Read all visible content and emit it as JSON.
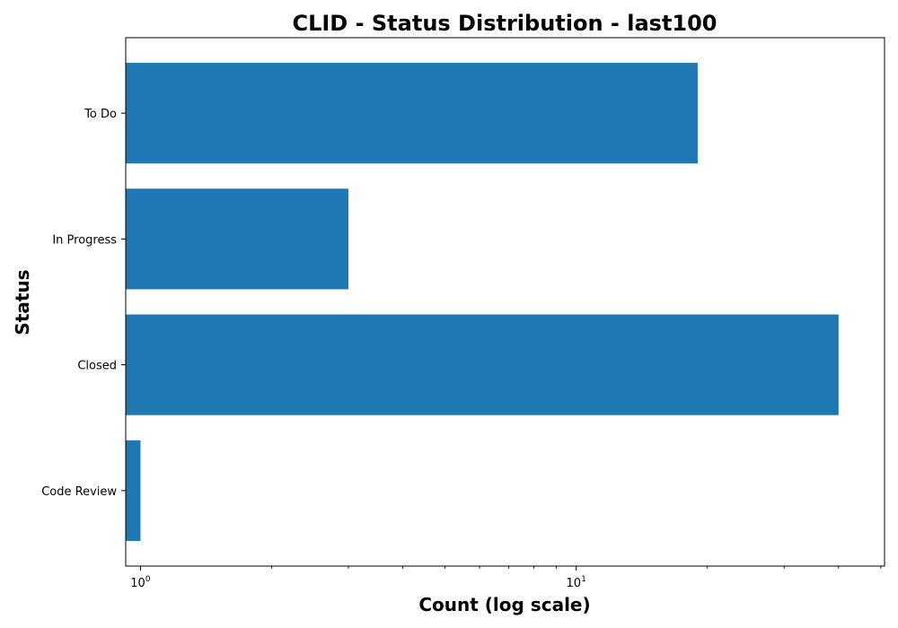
{
  "chart_data": {
    "type": "bar",
    "orientation": "horizontal",
    "title": "CLID - Status Distribution - last100",
    "xlabel": "Count (log scale)",
    "ylabel": "Status",
    "x_scale": "log",
    "xlim": [
      0.925,
      51
    ],
    "x_ticks": [
      {
        "value": 1,
        "base": "10",
        "exp": "0"
      },
      {
        "value": 10,
        "base": "10",
        "exp": "1"
      }
    ],
    "categories": [
      "To Do",
      "In Progress",
      "Closed",
      "Code Review"
    ],
    "values": [
      19,
      3,
      40,
      1
    ],
    "bar_color": "#1f77b4",
    "grid": false,
    "legend": "none"
  }
}
